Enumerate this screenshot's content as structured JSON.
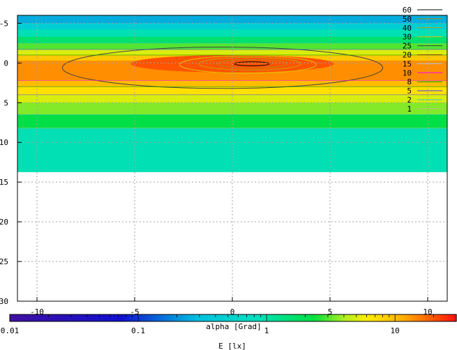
{
  "chart_data": {
    "type": "heatmap",
    "title": "",
    "xlabel": "alpha [Grad]",
    "ylabel": "",
    "colorbar_label": "E [lx]",
    "xlim": [
      -11,
      11
    ],
    "ylim": [
      -6,
      30
    ],
    "y_reversed": true,
    "grid": true,
    "x_ticks": [
      -10,
      -5,
      0,
      5,
      10
    ],
    "y_ticks": [
      -5,
      0,
      5,
      10,
      15,
      20,
      25,
      30
    ],
    "x_tick_labels": [
      "-10",
      "-5",
      "0",
      "5",
      "10"
    ],
    "y_tick_labels": [
      "-5",
      "0",
      "5",
      "10",
      "15",
      "20",
      "25",
      "30"
    ],
    "colorbar": {
      "scale": "log",
      "range": [
        0.01,
        30
      ],
      "tick_values": [
        0.01,
        0.1,
        1,
        10
      ],
      "tick_labels": [
        "0.01",
        "0.1",
        "1",
        "10"
      ]
    },
    "data_extent": {
      "x": [
        -11,
        11
      ],
      "y": [
        -6,
        13.7
      ]
    },
    "peak": {
      "x": 0,
      "y": 0,
      "value": 60
    },
    "contour_levels": [
      {
        "label": "60",
        "value": 60,
        "color": "#000000"
      },
      {
        "label": "50",
        "value": 50,
        "color": "#b8860b"
      },
      {
        "label": "40",
        "value": 40,
        "color": "#c8a000"
      },
      {
        "label": "30",
        "value": 30,
        "color": "#e0c000"
      },
      {
        "label": "25",
        "value": 25,
        "color": "#404040"
      },
      {
        "label": "20",
        "value": 20,
        "color": "#8b4513"
      },
      {
        "label": "15",
        "value": 15,
        "color": "#c0c0c0"
      },
      {
        "label": "10",
        "value": 10,
        "color": "#ff00ff"
      },
      {
        "label": "8",
        "value": 8,
        "color": "#00a000"
      },
      {
        "label": "5",
        "value": 5,
        "color": "#4040ff"
      },
      {
        "label": "2",
        "value": 2,
        "color": "#40c0c0"
      },
      {
        "label": "1",
        "value": 1,
        "color": "#c0c080"
      }
    ],
    "bands": [
      {
        "y": [
          -6,
          -5.0
        ],
        "value": 0.25
      },
      {
        "y": [
          -5.0,
          -4.2
        ],
        "value": 0.45
      },
      {
        "y": [
          -4.2,
          -3.3
        ],
        "value": 0.9
      },
      {
        "y": [
          -3.3,
          -2.5
        ],
        "value": 1.6
      },
      {
        "y": [
          -2.5,
          -1.7
        ],
        "value": 3
      },
      {
        "y": [
          -1.7,
          -1.0
        ],
        "value": 5
      },
      {
        "y": [
          -1.0,
          -0.3
        ],
        "value": 9
      },
      {
        "y": [
          -0.3,
          2.2
        ],
        "value": 14
      },
      {
        "y": [
          2.2,
          3.0
        ],
        "value": 10
      },
      {
        "y": [
          3.0,
          4.0
        ],
        "value": 7
      },
      {
        "y": [
          4.0,
          5.0
        ],
        "value": 5
      },
      {
        "y": [
          5.0,
          6.5
        ],
        "value": 3.5
      },
      {
        "y": [
          6.5,
          8.2
        ],
        "value": 2.2
      },
      {
        "y": [
          8.2,
          13.7
        ],
        "value": 0.9
      }
    ],
    "core": {
      "cx": 0,
      "cy": 0.1,
      "rx": 5.2,
      "ry": 1.1,
      "value": 20
    },
    "contours": [
      {
        "value": 25,
        "cx": -0.5,
        "cy": 0.6,
        "rx": 8.2,
        "ry": 2.6
      },
      {
        "value": 30,
        "cx": 0.8,
        "cy": 0.2,
        "rx": 3.5,
        "ry": 1.1
      },
      {
        "value": 40,
        "cx": 0.9,
        "cy": 0.1,
        "rx": 2.6,
        "ry": 0.8
      },
      {
        "value": 50,
        "cx": 1.0,
        "cy": 0.1,
        "rx": 1.8,
        "ry": 0.55
      },
      {
        "value": 60,
        "cx": 1.0,
        "cy": 0.1,
        "rx": 0.9,
        "ry": 0.25
      }
    ]
  }
}
